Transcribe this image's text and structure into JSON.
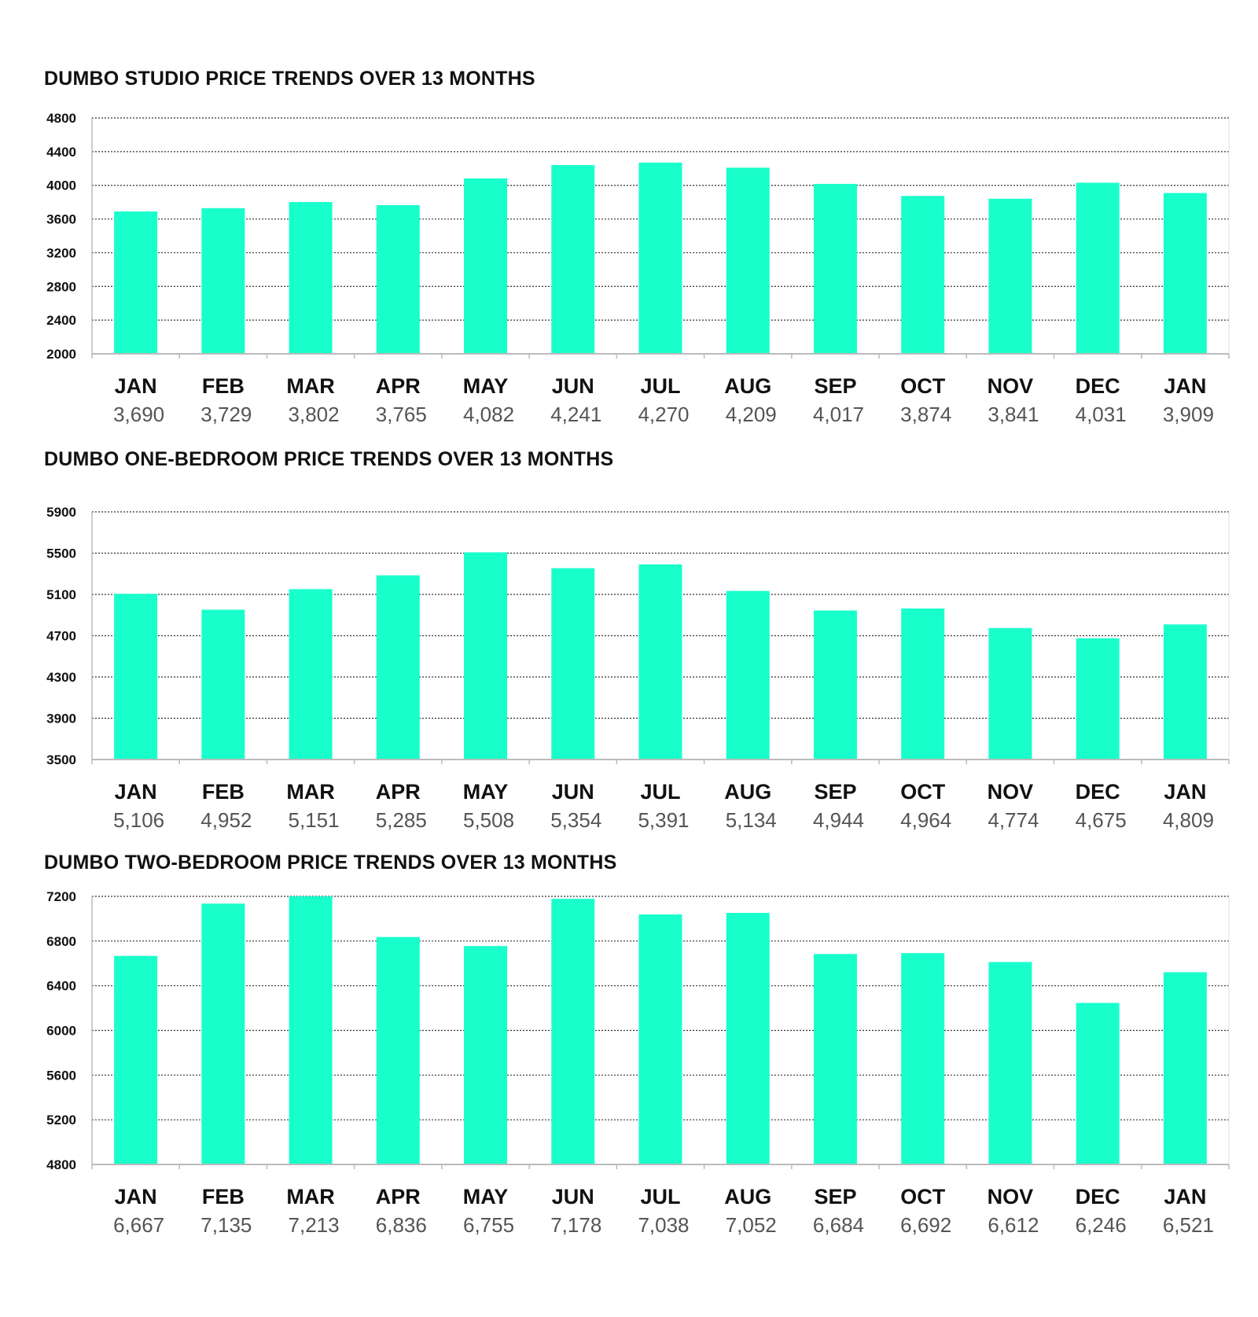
{
  "colors": {
    "bar": "#19ffcc",
    "grid": "#333333",
    "axis": "#bbbbbb"
  },
  "chart_data": [
    {
      "type": "bar",
      "title": "DUMBO STUDIO PRICE TRENDS OVER 13 MONTHS",
      "categories": [
        "JAN",
        "FEB",
        "MAR",
        "APR",
        "MAY",
        "JUN",
        "JUL",
        "AUG",
        "SEP",
        "OCT",
        "NOV",
        "DEC",
        "JAN"
      ],
      "values": [
        3690,
        3729,
        3802,
        3765,
        4082,
        4241,
        4270,
        4209,
        4017,
        3874,
        3841,
        4031,
        3909
      ],
      "value_labels": [
        "3,690",
        "3,729",
        "3,802",
        "3,765",
        "4,082",
        "4,241",
        "4,270",
        "4,209",
        "4,017",
        "3,874",
        "3,841",
        "4,031",
        "3,909"
      ],
      "ylim": [
        2000,
        4800
      ],
      "yticks": [
        2000,
        2400,
        2800,
        3200,
        3600,
        4000,
        4400,
        4800
      ],
      "xlabel": "",
      "ylabel": "",
      "grid": true
    },
    {
      "type": "bar",
      "title": "DUMBO ONE-BEDROOM PRICE TRENDS OVER 13 MONTHS",
      "categories": [
        "JAN",
        "FEB",
        "MAR",
        "APR",
        "MAY",
        "JUN",
        "JUL",
        "AUG",
        "SEP",
        "OCT",
        "NOV",
        "DEC",
        "JAN"
      ],
      "values": [
        5106,
        4952,
        5151,
        5285,
        5508,
        5354,
        5391,
        5134,
        4944,
        4964,
        4774,
        4675,
        4809
      ],
      "value_labels": [
        "5,106",
        "4,952",
        "5,151",
        "5,285",
        "5,508",
        "5,354",
        "5,391",
        "5,134",
        "4,944",
        "4,964",
        "4,774",
        "4,675",
        "4,809"
      ],
      "ylim": [
        3500,
        5900
      ],
      "yticks": [
        3500,
        3900,
        4300,
        4700,
        5100,
        5500,
        5900
      ],
      "xlabel": "",
      "ylabel": "",
      "grid": true
    },
    {
      "type": "bar",
      "title": "DUMBO TWO-BEDROOM PRICE TRENDS OVER 13 MONTHS",
      "categories": [
        "JAN",
        "FEB",
        "MAR",
        "APR",
        "MAY",
        "JUN",
        "JUL",
        "AUG",
        "SEP",
        "OCT",
        "NOV",
        "DEC",
        "JAN"
      ],
      "values": [
        6667,
        7135,
        7213,
        6836,
        6755,
        7178,
        7038,
        7052,
        6684,
        6692,
        6612,
        6246,
        6521
      ],
      "value_labels": [
        "6,667",
        "7,135",
        "7,213",
        "6,836",
        "6,755",
        "7,178",
        "7,038",
        "7,052",
        "6,684",
        "6,692",
        "6,612",
        "6,246",
        "6,521"
      ],
      "ylim": [
        4800,
        7200
      ],
      "yticks": [
        4800,
        5200,
        5600,
        6000,
        6400,
        6800,
        7200
      ],
      "xlabel": "",
      "ylabel": "",
      "grid": true
    }
  ]
}
